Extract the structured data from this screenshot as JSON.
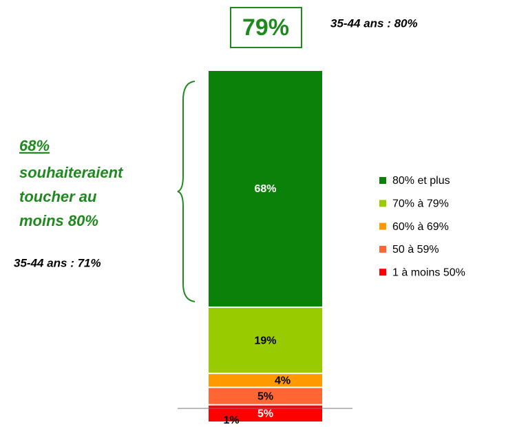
{
  "chart_data": {
    "type": "stacked_bar",
    "series": [
      {
        "name": "80% et plus",
        "color": "#0a820a",
        "values": [
          68
        ],
        "value_labels": [
          "68%"
        ]
      },
      {
        "name": "70% à 79%",
        "color": "#99cc00",
        "values": [
          19
        ],
        "value_labels": [
          "19%"
        ]
      },
      {
        "name": "60% à 69%",
        "color": "#ff9900",
        "values": [
          4
        ],
        "value_labels": [
          "4%"
        ]
      },
      {
        "name": "50 à 59%",
        "color": "#ff6633",
        "values": [
          5
        ],
        "value_labels": [
          "5%"
        ]
      },
      {
        "name": "1 à moins 50%",
        "color": "#ff0000",
        "values": [
          5
        ],
        "value_labels": [
          "5%"
        ]
      }
    ],
    "annotations": {
      "total": "79%",
      "total_note": "35-44 ans : 80%",
      "brace_value": "68%",
      "brace_text": [
        "souhaiteraient",
        "toucher au",
        "moins 80%"
      ],
      "brace_note": "35-44 ans : 71%",
      "extra_label": "1%"
    },
    "legend": "right"
  }
}
